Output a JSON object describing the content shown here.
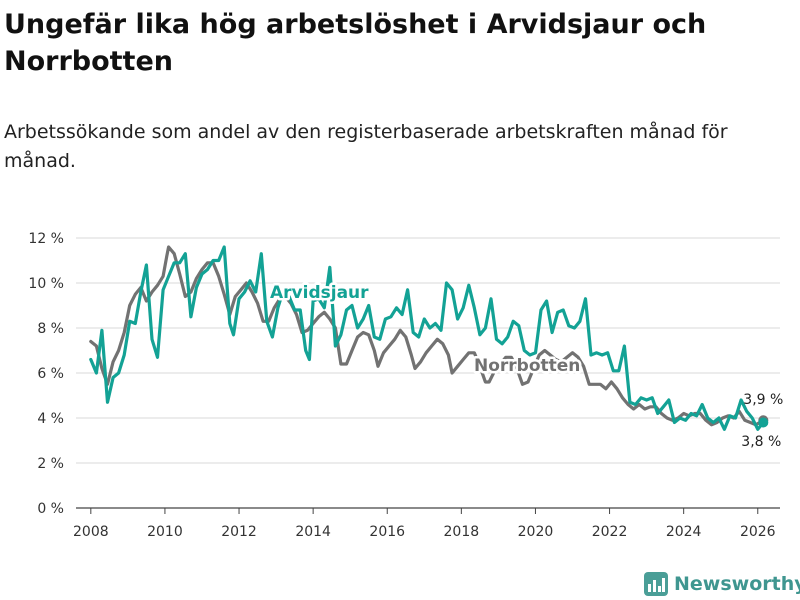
{
  "title": "Ungefär lika hög arbetslöshet i Arvidsjaur och Norrbotten",
  "subtitle": "Arbetssökande som andel av den registerbaserade arbetskraften månad för månad.",
  "brand": "Newsworthy",
  "colors": {
    "arvidsjaur": "#13a295",
    "norrbotten": "#727272",
    "grid": "#d9d9d9"
  },
  "chart_data": {
    "type": "line",
    "ylabel_unit": "%",
    "ylim": [
      0,
      12
    ],
    "xlim": [
      2007.6,
      2026.6
    ],
    "y_ticks": [
      0,
      2,
      4,
      6,
      8,
      10,
      12
    ],
    "y_tick_labels": [
      "0 %",
      "2 %",
      "4 %",
      "6 %",
      "8 %",
      "10 %",
      "12 %"
    ],
    "x_ticks": [
      2008,
      2010,
      2012,
      2014,
      2016,
      2018,
      2020,
      2022,
      2024,
      2026
    ],
    "x_tick_labels": [
      "2008",
      "2010",
      "2012",
      "2014",
      "2016",
      "2018",
      "2020",
      "2022",
      "2024",
      "2026"
    ],
    "series": [
      {
        "name": "Arvidsjaur",
        "label": "Arvidsjaur",
        "end_label": "3,8 %",
        "end_value": 3.8,
        "points": [
          [
            2008.0,
            6.6
          ],
          [
            2008.15,
            6.0
          ],
          [
            2008.3,
            7.9
          ],
          [
            2008.45,
            4.7
          ],
          [
            2008.6,
            5.8
          ],
          [
            2008.75,
            6.0
          ],
          [
            2008.9,
            6.8
          ],
          [
            2009.05,
            8.3
          ],
          [
            2009.2,
            8.2
          ],
          [
            2009.35,
            9.6
          ],
          [
            2009.5,
            10.8
          ],
          [
            2009.65,
            7.5
          ],
          [
            2009.8,
            6.7
          ],
          [
            2009.95,
            9.7
          ],
          [
            2010.1,
            10.3
          ],
          [
            2010.25,
            10.9
          ],
          [
            2010.4,
            10.9
          ],
          [
            2010.55,
            11.3
          ],
          [
            2010.7,
            8.5
          ],
          [
            2010.85,
            9.8
          ],
          [
            2011.0,
            10.4
          ],
          [
            2011.15,
            10.6
          ],
          [
            2011.3,
            11.0
          ],
          [
            2011.45,
            11.0
          ],
          [
            2011.6,
            11.6
          ],
          [
            2011.75,
            8.2
          ],
          [
            2011.85,
            7.7
          ],
          [
            2012.0,
            9.3
          ],
          [
            2012.15,
            9.6
          ],
          [
            2012.3,
            10.1
          ],
          [
            2012.45,
            9.6
          ],
          [
            2012.6,
            11.3
          ],
          [
            2012.75,
            8.3
          ],
          [
            2012.9,
            7.6
          ],
          [
            2013.05,
            8.9
          ],
          [
            2013.2,
            9.7
          ],
          [
            2013.35,
            9.4
          ],
          [
            2013.5,
            8.8
          ],
          [
            2013.65,
            8.8
          ],
          [
            2013.8,
            7.0
          ],
          [
            2013.9,
            6.6
          ],
          [
            2014.0,
            9.2
          ],
          [
            2014.15,
            9.3
          ],
          [
            2014.3,
            8.9
          ],
          [
            2014.45,
            10.7
          ],
          [
            2014.6,
            7.2
          ],
          [
            2014.75,
            7.7
          ],
          [
            2014.9,
            8.8
          ],
          [
            2015.05,
            9.0
          ],
          [
            2015.2,
            8.0
          ],
          [
            2015.35,
            8.4
          ],
          [
            2015.5,
            9.0
          ],
          [
            2015.65,
            7.6
          ],
          [
            2015.8,
            7.5
          ],
          [
            2015.95,
            8.4
          ],
          [
            2016.1,
            8.5
          ],
          [
            2016.25,
            8.9
          ],
          [
            2016.4,
            8.6
          ],
          [
            2016.55,
            9.7
          ],
          [
            2016.7,
            7.8
          ],
          [
            2016.85,
            7.6
          ],
          [
            2017.0,
            8.4
          ],
          [
            2017.15,
            8.0
          ],
          [
            2017.3,
            8.2
          ],
          [
            2017.45,
            7.9
          ],
          [
            2017.6,
            10.0
          ],
          [
            2017.75,
            9.7
          ],
          [
            2017.9,
            8.4
          ],
          [
            2018.05,
            8.9
          ],
          [
            2018.2,
            9.9
          ],
          [
            2018.35,
            8.9
          ],
          [
            2018.5,
            7.7
          ],
          [
            2018.65,
            8.0
          ],
          [
            2018.8,
            9.3
          ],
          [
            2018.95,
            7.5
          ],
          [
            2019.1,
            7.3
          ],
          [
            2019.25,
            7.6
          ],
          [
            2019.4,
            8.3
          ],
          [
            2019.55,
            8.1
          ],
          [
            2019.7,
            7.0
          ],
          [
            2019.85,
            6.8
          ],
          [
            2020.0,
            6.9
          ],
          [
            2020.15,
            8.8
          ],
          [
            2020.3,
            9.2
          ],
          [
            2020.45,
            7.8
          ],
          [
            2020.6,
            8.7
          ],
          [
            2020.75,
            8.8
          ],
          [
            2020.9,
            8.1
          ],
          [
            2021.05,
            8.0
          ],
          [
            2021.2,
            8.3
          ],
          [
            2021.35,
            9.3
          ],
          [
            2021.5,
            6.8
          ],
          [
            2021.65,
            6.9
          ],
          [
            2021.8,
            6.8
          ],
          [
            2021.95,
            6.9
          ],
          [
            2022.1,
            6.1
          ],
          [
            2022.25,
            6.1
          ],
          [
            2022.4,
            7.2
          ],
          [
            2022.55,
            4.7
          ],
          [
            2022.7,
            4.6
          ],
          [
            2022.85,
            4.9
          ],
          [
            2023.0,
            4.8
          ],
          [
            2023.15,
            4.9
          ],
          [
            2023.3,
            4.2
          ],
          [
            2023.45,
            4.5
          ],
          [
            2023.6,
            4.8
          ],
          [
            2023.75,
            3.8
          ],
          [
            2023.9,
            4.0
          ],
          [
            2024.05,
            3.9
          ],
          [
            2024.2,
            4.2
          ],
          [
            2024.35,
            4.1
          ],
          [
            2024.5,
            4.6
          ],
          [
            2024.65,
            4.0
          ],
          [
            2024.8,
            3.8
          ],
          [
            2024.95,
            4.0
          ],
          [
            2025.1,
            3.5
          ],
          [
            2025.25,
            4.1
          ],
          [
            2025.4,
            4.0
          ],
          [
            2025.55,
            4.8
          ],
          [
            2025.7,
            4.3
          ],
          [
            2025.85,
            4.0
          ],
          [
            2026.0,
            3.5
          ],
          [
            2026.15,
            3.8
          ]
        ]
      },
      {
        "name": "Norrbotten",
        "label": "Norrbotten",
        "end_label": "3,9 %",
        "end_value": 3.9,
        "points": [
          [
            2008.0,
            7.4
          ],
          [
            2008.15,
            7.2
          ],
          [
            2008.3,
            6.2
          ],
          [
            2008.45,
            5.5
          ],
          [
            2008.6,
            6.5
          ],
          [
            2008.75,
            7.0
          ],
          [
            2008.9,
            7.8
          ],
          [
            2009.05,
            9.0
          ],
          [
            2009.2,
            9.5
          ],
          [
            2009.35,
            9.8
          ],
          [
            2009.5,
            9.2
          ],
          [
            2009.65,
            9.6
          ],
          [
            2009.8,
            9.9
          ],
          [
            2009.95,
            10.3
          ],
          [
            2010.05,
            11.2
          ],
          [
            2010.1,
            11.6
          ],
          [
            2010.25,
            11.3
          ],
          [
            2010.4,
            10.4
          ],
          [
            2010.55,
            9.4
          ],
          [
            2010.7,
            9.6
          ],
          [
            2010.85,
            10.2
          ],
          [
            2011.0,
            10.6
          ],
          [
            2011.15,
            10.9
          ],
          [
            2011.3,
            10.9
          ],
          [
            2011.45,
            10.3
          ],
          [
            2011.6,
            9.5
          ],
          [
            2011.75,
            8.6
          ],
          [
            2011.9,
            9.4
          ],
          [
            2012.05,
            9.7
          ],
          [
            2012.2,
            10.0
          ],
          [
            2012.35,
            9.6
          ],
          [
            2012.5,
            9.1
          ],
          [
            2012.65,
            8.3
          ],
          [
            2012.8,
            8.3
          ],
          [
            2012.95,
            8.9
          ],
          [
            2013.1,
            9.3
          ],
          [
            2013.25,
            9.4
          ],
          [
            2013.4,
            9.1
          ],
          [
            2013.55,
            8.6
          ],
          [
            2013.7,
            7.8
          ],
          [
            2013.85,
            7.9
          ],
          [
            2014.0,
            8.2
          ],
          [
            2014.15,
            8.5
          ],
          [
            2014.3,
            8.7
          ],
          [
            2014.45,
            8.4
          ],
          [
            2014.6,
            8.0
          ],
          [
            2014.75,
            6.4
          ],
          [
            2014.9,
            6.4
          ],
          [
            2015.05,
            7.0
          ],
          [
            2015.2,
            7.6
          ],
          [
            2015.35,
            7.8
          ],
          [
            2015.5,
            7.7
          ],
          [
            2015.65,
            7.0
          ],
          [
            2015.75,
            6.3
          ],
          [
            2015.9,
            6.9
          ],
          [
            2016.05,
            7.2
          ],
          [
            2016.2,
            7.5
          ],
          [
            2016.35,
            7.9
          ],
          [
            2016.5,
            7.6
          ],
          [
            2016.65,
            6.8
          ],
          [
            2016.75,
            6.2
          ],
          [
            2016.9,
            6.5
          ],
          [
            2017.05,
            6.9
          ],
          [
            2017.2,
            7.2
          ],
          [
            2017.35,
            7.5
          ],
          [
            2017.5,
            7.3
          ],
          [
            2017.65,
            6.8
          ],
          [
            2017.75,
            6.0
          ],
          [
            2017.9,
            6.3
          ],
          [
            2018.05,
            6.6
          ],
          [
            2018.2,
            6.9
          ],
          [
            2018.35,
            6.9
          ],
          [
            2018.5,
            6.3
          ],
          [
            2018.65,
            5.6
          ],
          [
            2018.75,
            5.6
          ],
          [
            2018.9,
            6.1
          ],
          [
            2019.05,
            6.4
          ],
          [
            2019.2,
            6.7
          ],
          [
            2019.35,
            6.7
          ],
          [
            2019.5,
            6.2
          ],
          [
            2019.65,
            5.5
          ],
          [
            2019.8,
            5.6
          ],
          [
            2019.95,
            6.2
          ],
          [
            2020.1,
            6.8
          ],
          [
            2020.25,
            7.0
          ],
          [
            2020.4,
            6.8
          ],
          [
            2020.55,
            6.6
          ],
          [
            2020.7,
            6.5
          ],
          [
            2020.85,
            6.7
          ],
          [
            2021.0,
            6.9
          ],
          [
            2021.15,
            6.7
          ],
          [
            2021.3,
            6.3
          ],
          [
            2021.45,
            5.5
          ],
          [
            2021.6,
            5.5
          ],
          [
            2021.75,
            5.5
          ],
          [
            2021.9,
            5.3
          ],
          [
            2022.05,
            5.6
          ],
          [
            2022.2,
            5.3
          ],
          [
            2022.35,
            4.9
          ],
          [
            2022.5,
            4.6
          ],
          [
            2022.65,
            4.4
          ],
          [
            2022.8,
            4.6
          ],
          [
            2022.95,
            4.4
          ],
          [
            2023.1,
            4.5
          ],
          [
            2023.25,
            4.5
          ],
          [
            2023.4,
            4.2
          ],
          [
            2023.55,
            4.0
          ],
          [
            2023.7,
            3.9
          ],
          [
            2023.85,
            4.0
          ],
          [
            2024.0,
            4.2
          ],
          [
            2024.15,
            4.1
          ],
          [
            2024.3,
            4.2
          ],
          [
            2024.45,
            4.2
          ],
          [
            2024.6,
            3.9
          ],
          [
            2024.75,
            3.7
          ],
          [
            2024.9,
            3.8
          ],
          [
            2025.05,
            4.0
          ],
          [
            2025.2,
            4.1
          ],
          [
            2025.35,
            4.0
          ],
          [
            2025.5,
            4.3
          ],
          [
            2025.65,
            3.9
          ],
          [
            2025.8,
            3.8
          ],
          [
            2025.95,
            3.7
          ],
          [
            2026.15,
            3.9
          ]
        ]
      }
    ]
  }
}
